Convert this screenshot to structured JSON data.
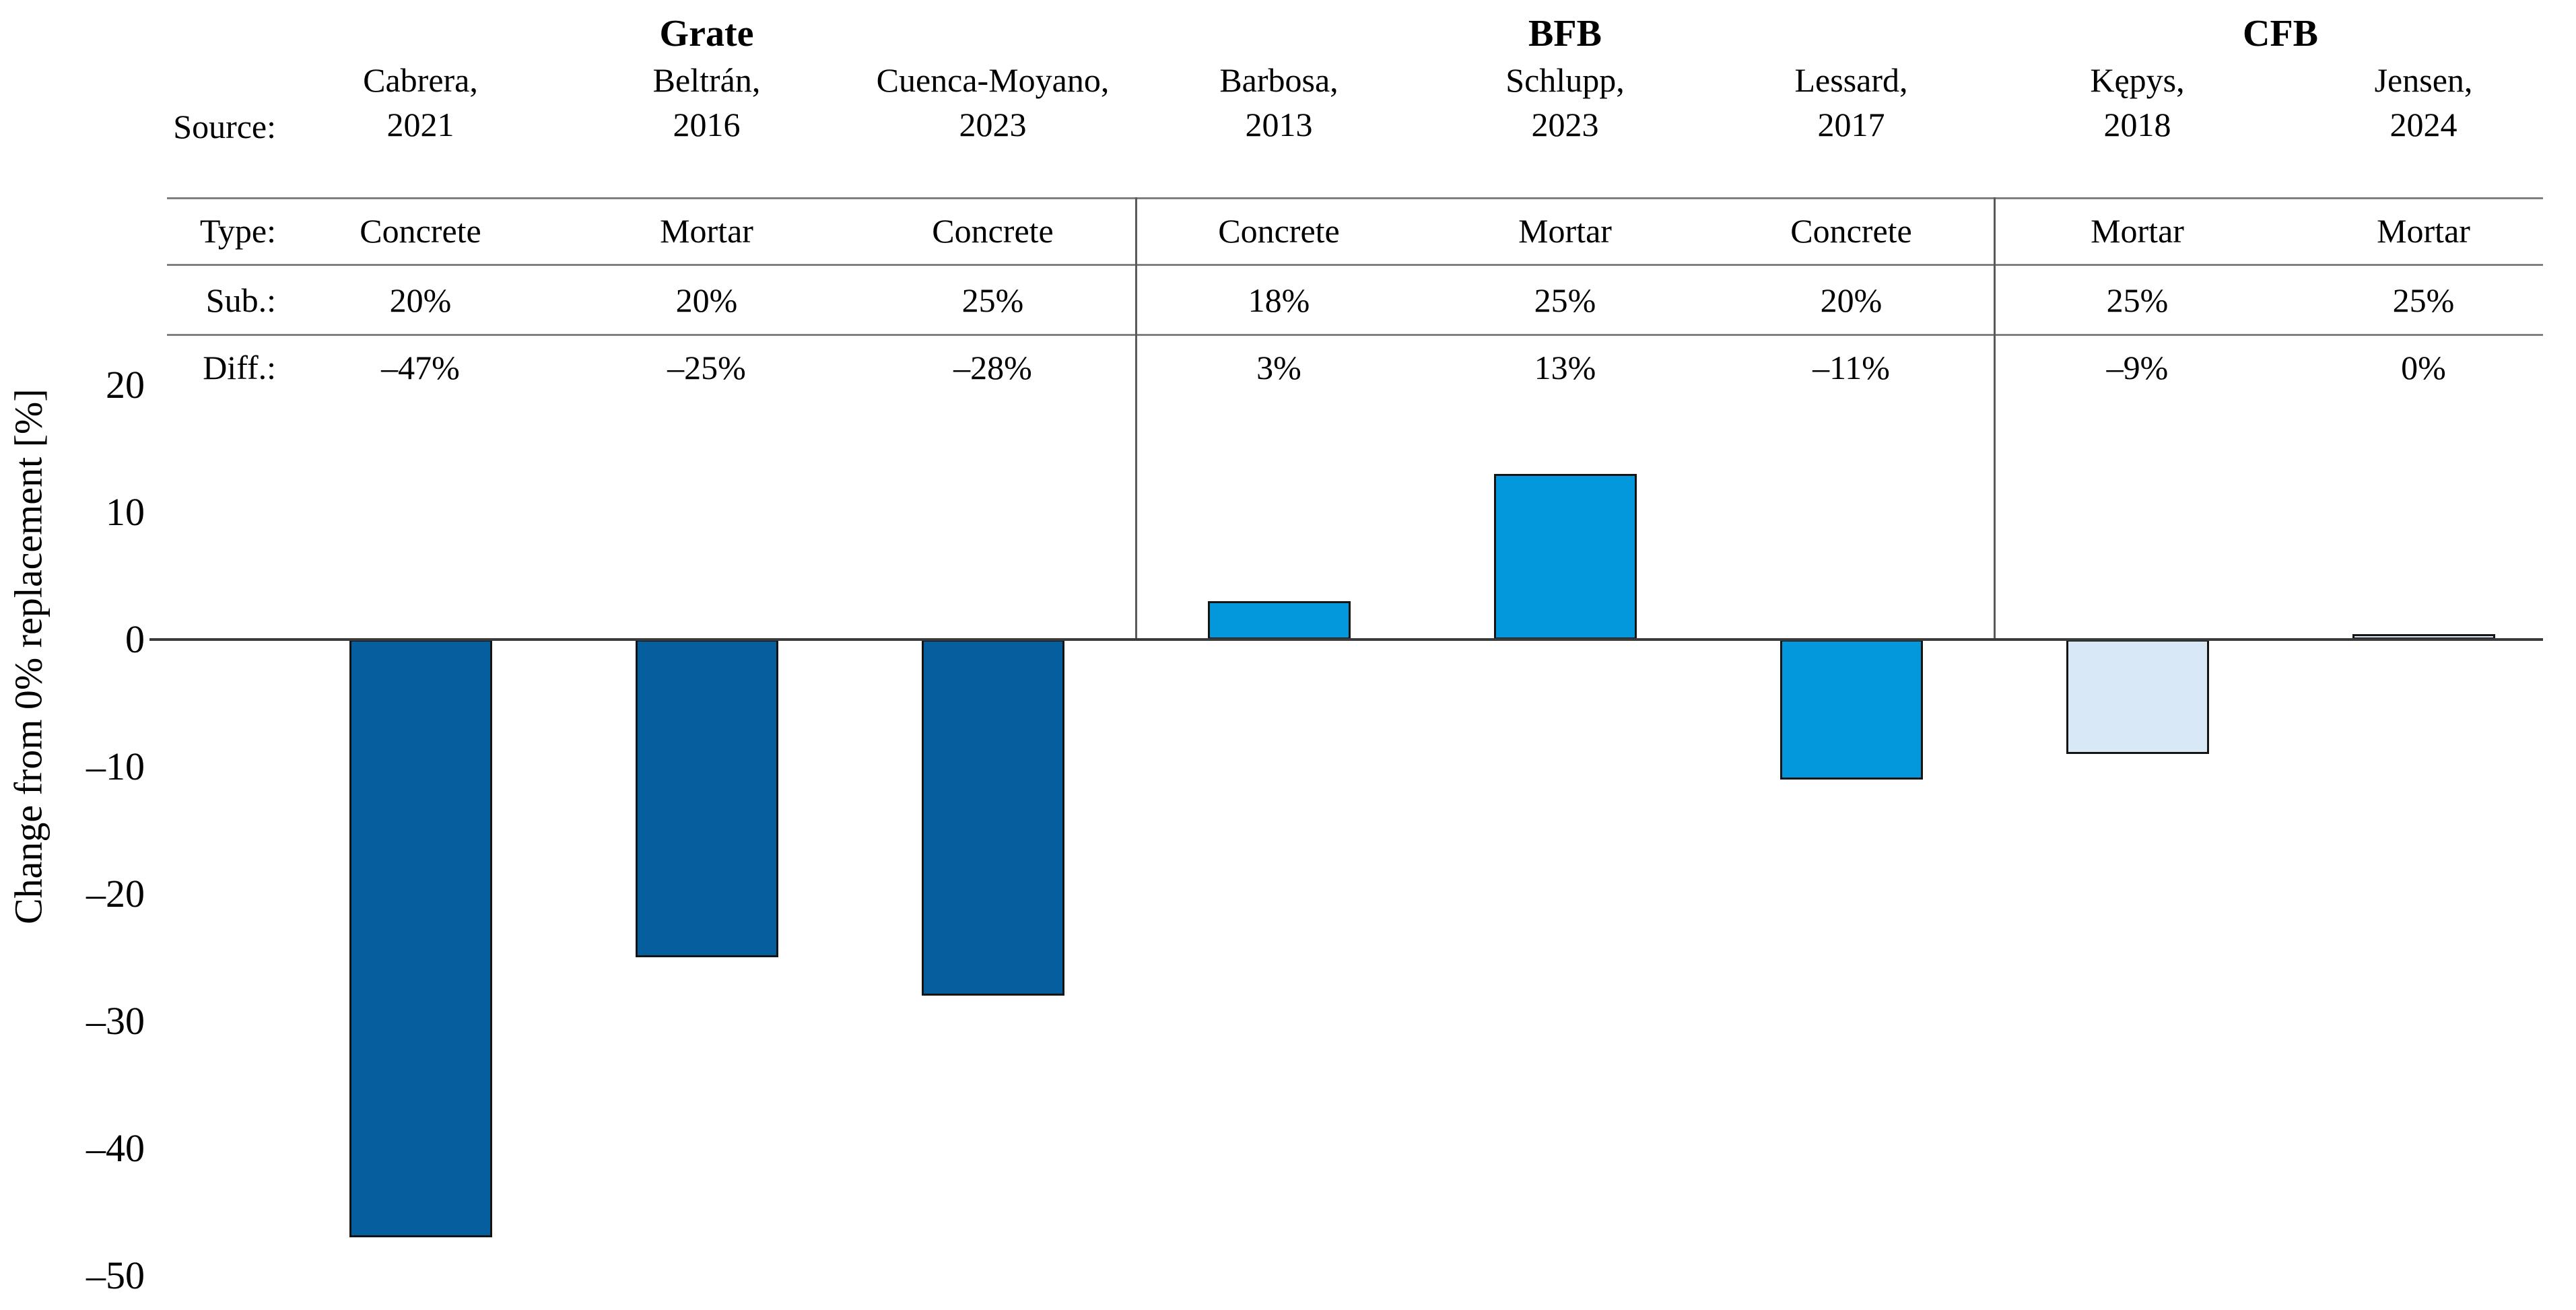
{
  "y_axis": {
    "title": "Change from 0% replacement [%]",
    "ticks": [
      "20",
      "10",
      "0",
      "–10",
      "–20",
      "–30",
      "–40",
      "–50"
    ],
    "tick_values": [
      20,
      10,
      0,
      -10,
      -20,
      -30,
      -40,
      -50
    ]
  },
  "table": {
    "row_labels": [
      "Source:",
      "Type:",
      "Sub.:",
      "Diff.:"
    ]
  },
  "groups": [
    {
      "label": "Grate",
      "column_indexes": [
        0,
        1,
        2
      ]
    },
    {
      "label": "BFB",
      "column_indexes": [
        3,
        4,
        5
      ]
    },
    {
      "label": "CFB",
      "column_indexes": [
        6,
        7
      ]
    }
  ],
  "colors": {
    "grate_bar": "#055E9D",
    "bfb_bar": "#0397DC",
    "cfb_bar": "#D8E8F6",
    "bar_outline": "#141414",
    "axis_line": "#3a3a3a",
    "table_line": "#7f7f7f"
  },
  "columns": [
    {
      "source_line1": "Cabrera,",
      "source_line2": "2021",
      "type": "Concrete",
      "sub": "20%",
      "diff": "–47%",
      "value": -47,
      "drawn_value": -47,
      "color_key": "grate_bar"
    },
    {
      "source_line1": "Beltrán,",
      "source_line2": "2016",
      "type": "Mortar",
      "sub": "20%",
      "diff": "–25%",
      "value": -25,
      "drawn_value": -25,
      "color_key": "grate_bar"
    },
    {
      "source_line1": "Cuenca-Moyano,",
      "source_line2": "2023",
      "type": "Concrete",
      "sub": "25%",
      "diff": "–28%",
      "value": -28,
      "drawn_value": -28,
      "color_key": "grate_bar"
    },
    {
      "source_line1": "Barbosa,",
      "source_line2": "2013",
      "type": "Concrete",
      "sub": "18%",
      "diff": "3%",
      "value": 3,
      "drawn_value": 3,
      "color_key": "bfb_bar"
    },
    {
      "source_line1": "Schlupp,",
      "source_line2": "2023",
      "type": "Mortar",
      "sub": "25%",
      "diff": "13%",
      "value": 13,
      "drawn_value": 13,
      "color_key": "bfb_bar"
    },
    {
      "source_line1": "Lessard,",
      "source_line2": "2017",
      "type": "Concrete",
      "sub": "20%",
      "diff": "–11%",
      "value": -11,
      "drawn_value": -11,
      "color_key": "bfb_bar"
    },
    {
      "source_line1": "Kępys,",
      "source_line2": "2018",
      "type": "Mortar",
      "sub": "25%",
      "diff": "–9%",
      "value": -9,
      "drawn_value": -9,
      "color_key": "cfb_bar"
    },
    {
      "source_line1": "Jensen,",
      "source_line2": "2024",
      "type": "Mortar",
      "sub": "25%",
      "diff": "0%",
      "value": 0,
      "drawn_value": 0.3,
      "color_key": "cfb_bar"
    }
  ],
  "chart_data": {
    "type": "bar",
    "title": "",
    "xlabel": "",
    "ylabel": "Change from 0% replacement [%]",
    "ylim": [
      -50,
      20
    ],
    "grid": false,
    "legend": "none",
    "categories": [
      "Cabrera, 2021",
      "Beltrán, 2016",
      "Cuenca-Moyano, 2023",
      "Barbosa, 2013",
      "Schlupp, 2023",
      "Lessard, 2017",
      "Kępys, 2018",
      "Jensen, 2024"
    ],
    "group_of_category": [
      "Grate",
      "Grate",
      "Grate",
      "BFB",
      "BFB",
      "BFB",
      "CFB",
      "CFB"
    ],
    "specimen_type": [
      "Concrete",
      "Mortar",
      "Concrete",
      "Concrete",
      "Mortar",
      "Concrete",
      "Mortar",
      "Mortar"
    ],
    "substitution_pct": [
      20,
      20,
      25,
      18,
      25,
      20,
      25,
      25
    ],
    "values": [
      -47,
      -25,
      -28,
      3,
      13,
      -11,
      -9,
      0
    ]
  }
}
